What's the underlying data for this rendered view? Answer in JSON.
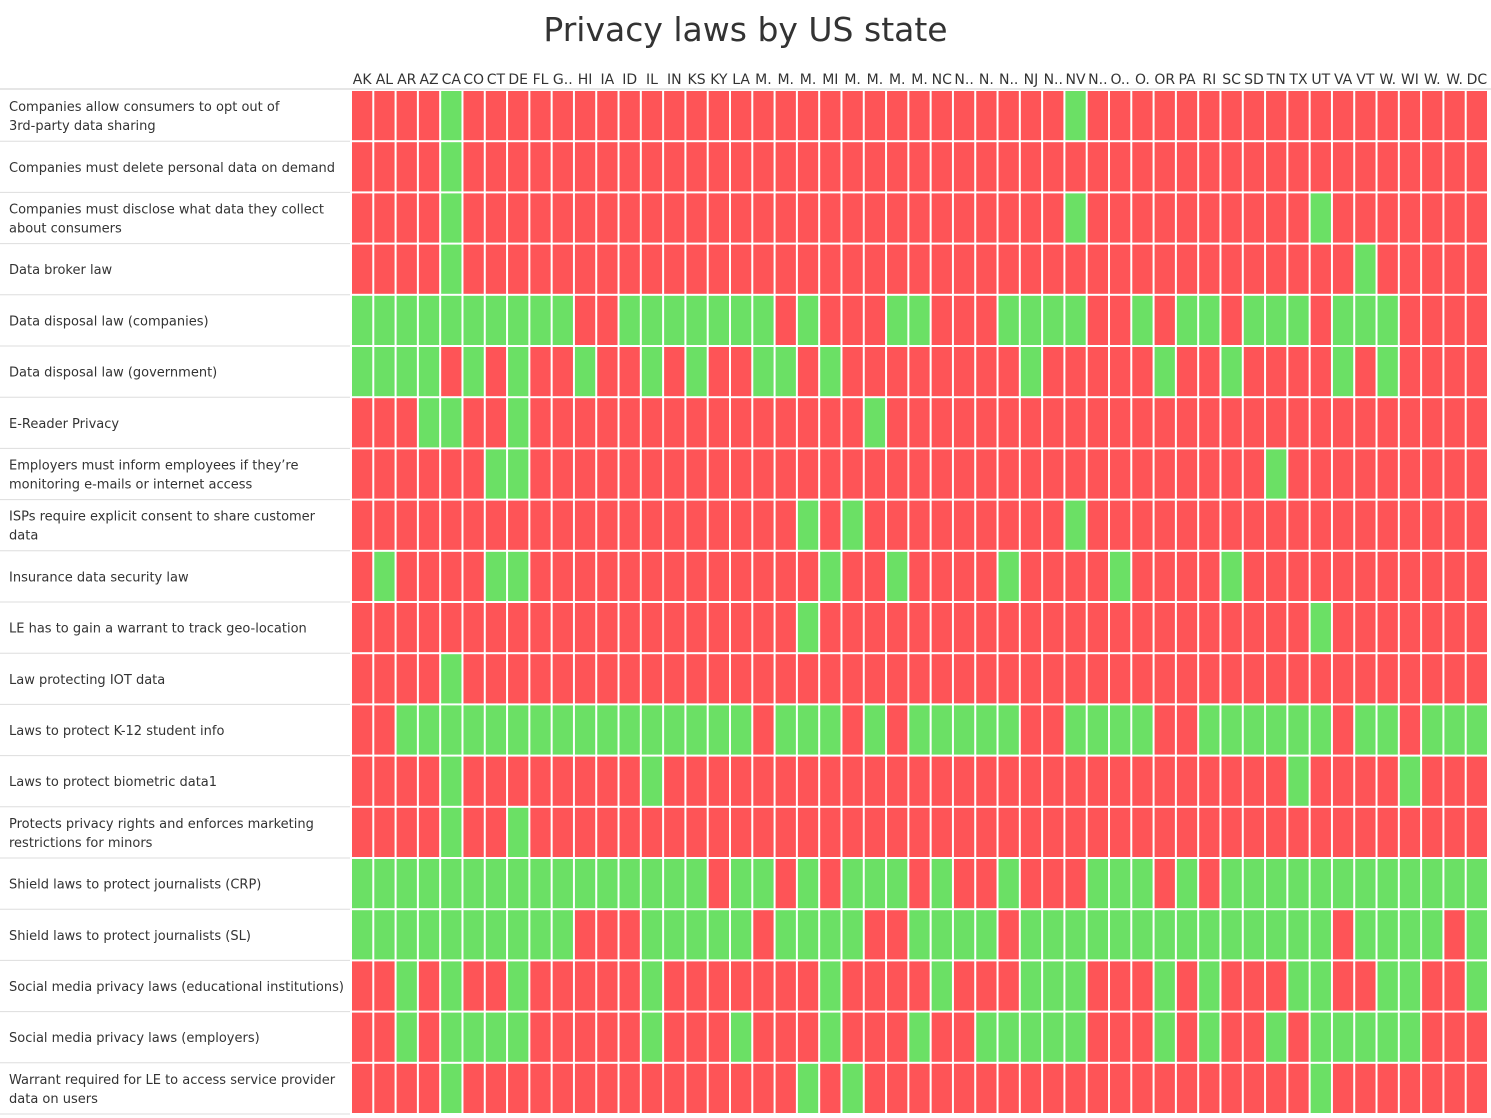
{
  "chart_data": {
    "type": "heatmap",
    "title": "Privacy laws by US state",
    "xlabel": "",
    "ylabel": "",
    "grid": true,
    "legend": "none",
    "colors": {
      "yes": "#6be065",
      "no": "#fe5457",
      "grid": "#ffffff",
      "row_separator": "#cccccc",
      "text": "#333333"
    },
    "columns": [
      "AK",
      "AL",
      "AR",
      "AZ",
      "CA",
      "CO",
      "CT",
      "DE",
      "FL",
      "G..",
      "HI",
      "IA",
      "ID",
      "IL",
      "IN",
      "KS",
      "KY",
      "LA",
      "M.",
      "M.",
      "M.",
      "MI",
      "M.",
      "M.",
      "M.",
      "M.",
      "NC",
      "N..",
      "N.",
      "N..",
      "NJ",
      "N..",
      "NV",
      "N..",
      "O..",
      "O.",
      "OR",
      "PA",
      "RI",
      "SC",
      "SD",
      "TN",
      "TX",
      "UT",
      "VA",
      "VT",
      "W.",
      "WI",
      "W.",
      "W.",
      "DC"
    ],
    "rows": [
      {
        "label": "Companies allow consumers to opt out of 3rd-party data sharing",
        "values": [
          0,
          0,
          0,
          0,
          1,
          0,
          0,
          0,
          0,
          0,
          0,
          0,
          0,
          0,
          0,
          0,
          0,
          0,
          0,
          0,
          0,
          0,
          0,
          0,
          0,
          0,
          0,
          0,
          0,
          0,
          0,
          0,
          1,
          0,
          0,
          0,
          0,
          0,
          0,
          0,
          0,
          0,
          0,
          0,
          0,
          0,
          0,
          0,
          0,
          0,
          0
        ]
      },
      {
        "label": "Companies must delete personal data on demand",
        "values": [
          0,
          0,
          0,
          0,
          1,
          0,
          0,
          0,
          0,
          0,
          0,
          0,
          0,
          0,
          0,
          0,
          0,
          0,
          0,
          0,
          0,
          0,
          0,
          0,
          0,
          0,
          0,
          0,
          0,
          0,
          0,
          0,
          0,
          0,
          0,
          0,
          0,
          0,
          0,
          0,
          0,
          0,
          0,
          0,
          0,
          0,
          0,
          0,
          0,
          0,
          0
        ]
      },
      {
        "label": "Companies must disclose what data they collect about consumers",
        "values": [
          0,
          0,
          0,
          0,
          1,
          0,
          0,
          0,
          0,
          0,
          0,
          0,
          0,
          0,
          0,
          0,
          0,
          0,
          0,
          0,
          0,
          0,
          0,
          0,
          0,
          0,
          0,
          0,
          0,
          0,
          0,
          0,
          1,
          0,
          0,
          0,
          0,
          0,
          0,
          0,
          0,
          0,
          0,
          1,
          0,
          0,
          0,
          0,
          0,
          0,
          0
        ]
      },
      {
        "label": "Data broker law",
        "values": [
          0,
          0,
          0,
          0,
          1,
          0,
          0,
          0,
          0,
          0,
          0,
          0,
          0,
          0,
          0,
          0,
          0,
          0,
          0,
          0,
          0,
          0,
          0,
          0,
          0,
          0,
          0,
          0,
          0,
          0,
          0,
          0,
          0,
          0,
          0,
          0,
          0,
          0,
          0,
          0,
          0,
          0,
          0,
          0,
          0,
          1,
          0,
          0,
          0,
          0,
          0
        ]
      },
      {
        "label": "Data disposal law (companies)",
        "values": [
          1,
          1,
          1,
          1,
          1,
          1,
          1,
          1,
          1,
          1,
          0,
          0,
          1,
          1,
          1,
          1,
          1,
          1,
          1,
          0,
          1,
          0,
          0,
          0,
          1,
          1,
          0,
          0,
          0,
          1,
          1,
          1,
          1,
          0,
          0,
          1,
          0,
          1,
          1,
          0,
          1,
          1,
          1,
          0,
          1,
          1,
          1,
          0,
          0,
          0,
          0
        ]
      },
      {
        "label": "Data disposal law (government)",
        "values": [
          1,
          1,
          1,
          1,
          0,
          1,
          0,
          1,
          0,
          0,
          1,
          0,
          0,
          1,
          0,
          1,
          0,
          0,
          1,
          1,
          0,
          1,
          0,
          0,
          0,
          0,
          0,
          0,
          0,
          0,
          1,
          0,
          0,
          0,
          0,
          0,
          1,
          0,
          0,
          1,
          0,
          0,
          0,
          0,
          1,
          0,
          1,
          0,
          0,
          0,
          0
        ]
      },
      {
        "label": "E-Reader Privacy",
        "values": [
          0,
          0,
          0,
          1,
          1,
          0,
          0,
          1,
          0,
          0,
          0,
          0,
          0,
          0,
          0,
          0,
          0,
          0,
          0,
          0,
          0,
          0,
          0,
          1,
          0,
          0,
          0,
          0,
          0,
          0,
          0,
          0,
          0,
          0,
          0,
          0,
          0,
          0,
          0,
          0,
          0,
          0,
          0,
          0,
          0,
          0,
          0,
          0,
          0,
          0,
          0
        ]
      },
      {
        "label": "Employers must inform employees if they’re monitoring e-mails or internet access",
        "values": [
          0,
          0,
          0,
          0,
          0,
          0,
          1,
          1,
          0,
          0,
          0,
          0,
          0,
          0,
          0,
          0,
          0,
          0,
          0,
          0,
          0,
          0,
          0,
          0,
          0,
          0,
          0,
          0,
          0,
          0,
          0,
          0,
          0,
          0,
          0,
          0,
          0,
          0,
          0,
          0,
          0,
          1,
          0,
          0,
          0,
          0,
          0,
          0,
          0,
          0,
          0
        ]
      },
      {
        "label": "ISPs require explicit consent to share customer data",
        "values": [
          0,
          0,
          0,
          0,
          0,
          0,
          0,
          0,
          0,
          0,
          0,
          0,
          0,
          0,
          0,
          0,
          0,
          0,
          0,
          0,
          1,
          0,
          1,
          0,
          0,
          0,
          0,
          0,
          0,
          0,
          0,
          0,
          1,
          0,
          0,
          0,
          0,
          0,
          0,
          0,
          0,
          0,
          0,
          0,
          0,
          0,
          0,
          0,
          0,
          0,
          0
        ]
      },
      {
        "label": "Insurance data security law",
        "values": [
          0,
          1,
          0,
          0,
          0,
          0,
          1,
          1,
          0,
          0,
          0,
          0,
          0,
          0,
          0,
          0,
          0,
          0,
          0,
          0,
          0,
          1,
          0,
          0,
          1,
          0,
          0,
          0,
          0,
          1,
          0,
          0,
          0,
          0,
          1,
          0,
          0,
          0,
          0,
          1,
          0,
          0,
          0,
          0,
          0,
          0,
          0,
          0,
          0,
          0,
          0
        ]
      },
      {
        "label": "LE has to gain a warrant to track geo-location",
        "values": [
          0,
          0,
          0,
          0,
          0,
          0,
          0,
          0,
          0,
          0,
          0,
          0,
          0,
          0,
          0,
          0,
          0,
          0,
          0,
          0,
          1,
          0,
          0,
          0,
          0,
          0,
          0,
          0,
          0,
          0,
          0,
          0,
          0,
          0,
          0,
          0,
          0,
          0,
          0,
          0,
          0,
          0,
          0,
          1,
          0,
          0,
          0,
          0,
          0,
          0,
          0
        ]
      },
      {
        "label": "Law protecting IOT data",
        "values": [
          0,
          0,
          0,
          0,
          1,
          0,
          0,
          0,
          0,
          0,
          0,
          0,
          0,
          0,
          0,
          0,
          0,
          0,
          0,
          0,
          0,
          0,
          0,
          0,
          0,
          0,
          0,
          0,
          0,
          0,
          0,
          0,
          0,
          0,
          0,
          0,
          0,
          0,
          0,
          0,
          0,
          0,
          0,
          0,
          0,
          0,
          0,
          0,
          0,
          0,
          0
        ]
      },
      {
        "label": "Laws to protect K-12 student info",
        "values": [
          0,
          0,
          1,
          1,
          1,
          1,
          1,
          1,
          1,
          1,
          1,
          1,
          1,
          1,
          1,
          1,
          1,
          1,
          0,
          1,
          1,
          1,
          0,
          1,
          0,
          1,
          1,
          1,
          1,
          1,
          0,
          0,
          1,
          1,
          1,
          1,
          0,
          0,
          1,
          1,
          1,
          1,
          1,
          1,
          0,
          1,
          1,
          0,
          1,
          1,
          1
        ]
      },
      {
        "label": "Laws to protect biometric data1",
        "values": [
          0,
          0,
          0,
          0,
          1,
          0,
          0,
          0,
          0,
          0,
          0,
          0,
          0,
          1,
          0,
          0,
          0,
          0,
          0,
          0,
          0,
          0,
          0,
          0,
          0,
          0,
          0,
          0,
          0,
          0,
          0,
          0,
          0,
          0,
          0,
          0,
          0,
          0,
          0,
          0,
          0,
          0,
          1,
          0,
          0,
          0,
          0,
          1,
          0,
          0,
          0
        ]
      },
      {
        "label": "Protects privacy rights and enforces marketing restrictions for minors",
        "values": [
          0,
          0,
          0,
          0,
          1,
          0,
          0,
          1,
          0,
          0,
          0,
          0,
          0,
          0,
          0,
          0,
          0,
          0,
          0,
          0,
          0,
          0,
          0,
          0,
          0,
          0,
          0,
          0,
          0,
          0,
          0,
          0,
          0,
          0,
          0,
          0,
          0,
          0,
          0,
          0,
          0,
          0,
          0,
          0,
          0,
          0,
          0,
          0,
          0,
          0,
          0
        ]
      },
      {
        "label": "Shield laws to protect journalists (CRP)",
        "values": [
          1,
          1,
          1,
          1,
          1,
          1,
          1,
          1,
          1,
          1,
          1,
          1,
          1,
          1,
          1,
          1,
          0,
          1,
          1,
          0,
          1,
          0,
          1,
          1,
          1,
          0,
          1,
          0,
          0,
          1,
          0,
          0,
          0,
          1,
          1,
          1,
          0,
          1,
          0,
          1,
          1,
          1,
          1,
          1,
          1,
          1,
          1,
          1,
          1,
          1,
          1
        ]
      },
      {
        "label": "Shield laws to protect journalists (SL)",
        "values": [
          1,
          1,
          1,
          1,
          1,
          1,
          1,
          1,
          1,
          1,
          0,
          0,
          0,
          1,
          1,
          1,
          1,
          1,
          0,
          1,
          1,
          1,
          1,
          0,
          0,
          1,
          1,
          1,
          1,
          0,
          1,
          1,
          1,
          1,
          1,
          1,
          1,
          1,
          1,
          1,
          1,
          1,
          1,
          1,
          0,
          1,
          1,
          1,
          1,
          0,
          1
        ]
      },
      {
        "label": "Social media privacy laws (educational institutions)",
        "values": [
          0,
          0,
          1,
          0,
          1,
          0,
          0,
          1,
          0,
          0,
          0,
          0,
          0,
          1,
          0,
          0,
          0,
          0,
          0,
          0,
          0,
          1,
          0,
          0,
          0,
          0,
          1,
          0,
          0,
          0,
          1,
          1,
          1,
          0,
          0,
          0,
          1,
          0,
          1,
          0,
          0,
          0,
          1,
          1,
          0,
          0,
          1,
          1,
          0,
          0,
          1
        ]
      },
      {
        "label": "Social media privacy laws (employers)",
        "values": [
          0,
          0,
          1,
          0,
          1,
          1,
          1,
          1,
          0,
          0,
          0,
          0,
          0,
          1,
          0,
          0,
          0,
          1,
          0,
          0,
          0,
          1,
          0,
          0,
          0,
          1,
          0,
          0,
          1,
          1,
          1,
          1,
          1,
          0,
          0,
          0,
          1,
          0,
          1,
          0,
          0,
          1,
          0,
          1,
          1,
          1,
          1,
          1,
          0,
          0,
          0
        ]
      },
      {
        "label": "Warrant required for LE to access service provider data on users",
        "values": [
          0,
          0,
          0,
          0,
          1,
          0,
          0,
          0,
          0,
          0,
          0,
          0,
          0,
          0,
          0,
          0,
          0,
          0,
          0,
          0,
          1,
          0,
          1,
          0,
          0,
          0,
          0,
          0,
          0,
          0,
          0,
          0,
          0,
          0,
          0,
          0,
          0,
          0,
          0,
          0,
          0,
          0,
          0,
          1,
          0,
          0,
          0,
          0,
          0,
          0,
          0
        ]
      }
    ]
  }
}
